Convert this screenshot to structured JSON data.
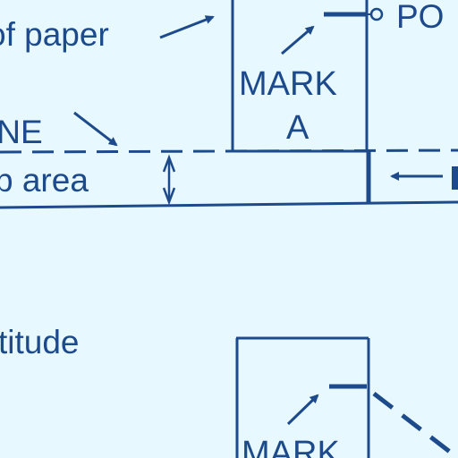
{
  "labels": {
    "edge_of_paper": "of paper",
    "point": "PO",
    "mark_a_word": "MARK",
    "mark_a_letter": "A",
    "line": "INE",
    "overlap_area": "p area",
    "latitude": "titude",
    "mark_b_word": "MARK"
  },
  "colors": {
    "background": "#e8f8ff",
    "ink": "#1c4a8a"
  }
}
